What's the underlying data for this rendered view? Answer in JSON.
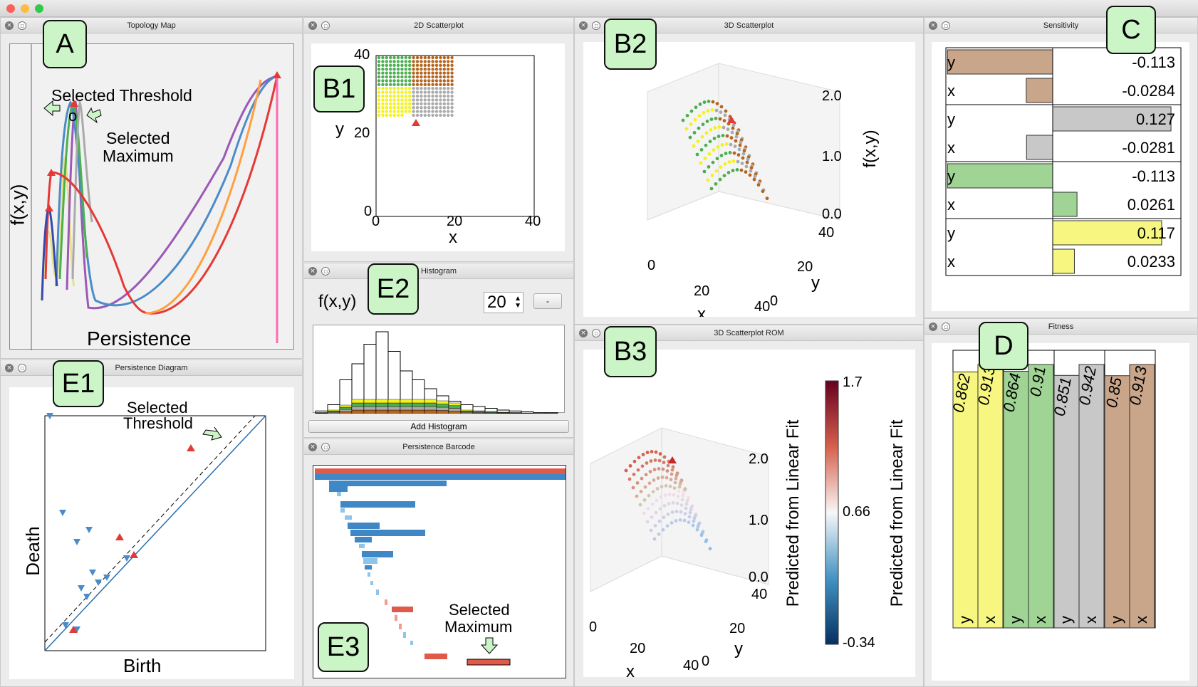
{
  "window": {
    "traffic": [
      "#fc605b",
      "#fdbc40",
      "#34c84a"
    ]
  },
  "panels": {
    "topology": {
      "title": "Topology Map",
      "ylabel": "f(x,y)",
      "xlabel": "Persistence",
      "note1": "Selected Threshold",
      "note2a": "Selected",
      "note2b": "Maximum",
      "marker": "o"
    },
    "scatter2d": {
      "title": "2D Scatterplot",
      "xlabel": "x",
      "ylabel": "y",
      "xticks": [
        "0",
        "20",
        "40"
      ],
      "yticks": [
        "40",
        "20",
        "0"
      ]
    },
    "scatter3d": {
      "title": "3D Scatterplot",
      "xlabel": "x",
      "ylabel": "y",
      "zlabel": "f(x,y)",
      "xticks": [
        "0",
        "20",
        "40"
      ],
      "yticks": [
        "0",
        "20",
        "40"
      ],
      "zticks": [
        "2.0",
        "1.0",
        "0.0"
      ]
    },
    "sensitivity": {
      "title": "Sensitivity"
    },
    "persistence_diagram": {
      "title": "Persistence Diagram",
      "xlabel": "Birth",
      "ylabel": "Death",
      "note_a": "Selected",
      "note_b": "Threshold"
    },
    "histogram": {
      "title": "Histogram",
      "field": "f(x,y)",
      "bins": "20",
      "dash": "-",
      "add_label": "Add Histogram"
    },
    "rom": {
      "title": "3D Scatterplot ROM",
      "zlabel": "Predicted from Linear Fit",
      "cbar_label": "Predicted from Linear Fit",
      "cbar_ticks": [
        "1.7",
        "0.66",
        "-0.34"
      ],
      "xlabel": "x",
      "ylabel": "y",
      "xticks": [
        "0",
        "20",
        "40"
      ],
      "yticks": [
        "0",
        "20",
        "40"
      ],
      "zticks": [
        "2.0",
        "1.0",
        "0.0"
      ]
    },
    "barcode": {
      "title": "Persistence Barcode",
      "note_a": "Selected",
      "note_b": "Maximum"
    },
    "fitness": {
      "title": "Fitness"
    }
  },
  "labels": {
    "A": "A",
    "B1": "B1",
    "B2": "B2",
    "B3": "B3",
    "C": "C",
    "D": "D",
    "E1": "E1",
    "E2": "E2",
    "E3": "E3"
  },
  "sensitivity_rows": [
    {
      "color": "#c9a58a",
      "rows": [
        {
          "var": "y",
          "value": "-0.113",
          "v": -0.113
        },
        {
          "var": "x",
          "value": "-0.0284",
          "v": -0.0284
        }
      ]
    },
    {
      "color": "#c8c8c8",
      "rows": [
        {
          "var": "y",
          "value": "0.127",
          "v": 0.127
        },
        {
          "var": "x",
          "value": "-0.0281",
          "v": -0.0281
        }
      ]
    },
    {
      "color": "#9fd494",
      "rows": [
        {
          "var": "y",
          "value": "-0.113",
          "v": -0.113
        },
        {
          "var": "x",
          "value": "0.0261",
          "v": 0.0261
        }
      ]
    },
    {
      "color": "#f6f680",
      "rows": [
        {
          "var": "y",
          "value": "0.117",
          "v": 0.117
        },
        {
          "var": "x",
          "value": "0.0233",
          "v": 0.0233
        }
      ]
    }
  ],
  "fitness_bars": [
    {
      "color": "#f6f680",
      "bars": [
        {
          "var": "y",
          "value": "0.862",
          "v": 0.862
        },
        {
          "var": "x",
          "value": "0.913",
          "v": 0.913
        }
      ]
    },
    {
      "color": "#9fd494",
      "bars": [
        {
          "var": "y",
          "value": "0.864",
          "v": 0.864
        },
        {
          "var": "x",
          "value": "0.91",
          "v": 0.91
        }
      ]
    },
    {
      "color": "#c8c8c8",
      "bars": [
        {
          "var": "y",
          "value": "0.851",
          "v": 0.851
        },
        {
          "var": "x",
          "value": "0.942",
          "v": 0.942
        }
      ]
    },
    {
      "color": "#c9a58a",
      "bars": [
        {
          "var": "y",
          "value": "0.85",
          "v": 0.85
        },
        {
          "var": "x",
          "value": "0.913",
          "v": 0.913
        }
      ]
    }
  ]
}
